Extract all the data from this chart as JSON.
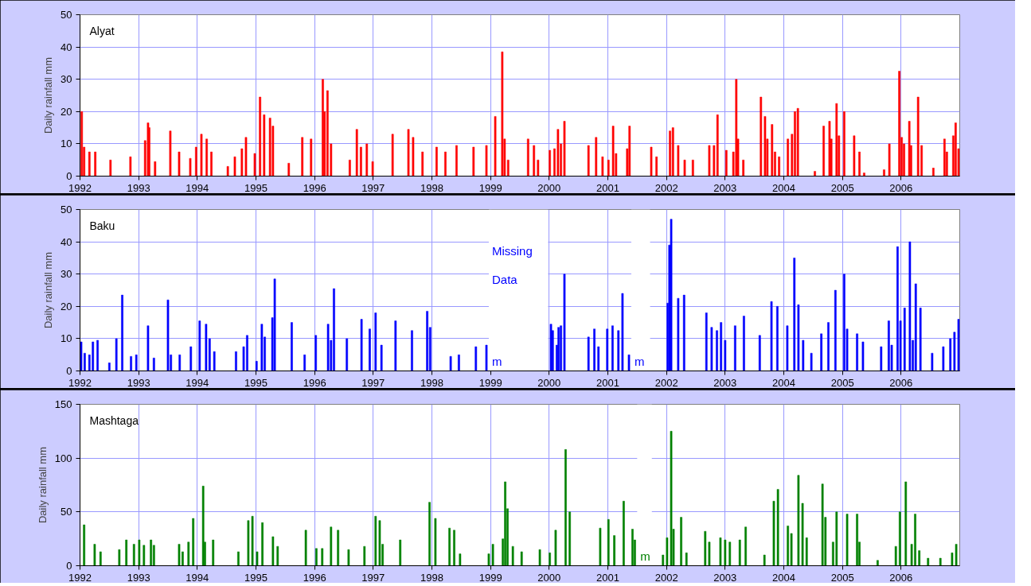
{
  "chart_data": [
    {
      "type": "bar",
      "title": "Alyat",
      "ylabel": "Daily rainfall mm",
      "color": "#ff0000",
      "xlim": [
        1992,
        2007
      ],
      "ylim": [
        0,
        50
      ],
      "yticks": [
        0,
        10,
        20,
        30,
        40,
        50
      ],
      "xticks": [
        1992,
        1993,
        1994,
        1995,
        1996,
        1997,
        1998,
        1999,
        2000,
        2001,
        2002,
        2003,
        2004,
        2005,
        2006
      ],
      "grid": true,
      "x": [
        1992.03,
        1992.07,
        1992.16,
        1992.26,
        1992.52,
        1992.86,
        1993.11,
        1993.16,
        1993.18,
        1993.28,
        1993.54,
        1993.69,
        1993.88,
        1993.98,
        1994.07,
        1994.16,
        1994.24,
        1994.52,
        1994.64,
        1994.76,
        1994.83,
        1994.98,
        1995.07,
        1995.14,
        1995.24,
        1995.29,
        1995.56,
        1995.79,
        1995.94,
        1996.14,
        1996.17,
        1996.22,
        1996.28,
        1996.6,
        1996.72,
        1996.79,
        1996.89,
        1996.99,
        1997.33,
        1997.6,
        1997.68,
        1997.84,
        1998.08,
        1998.23,
        1998.42,
        1998.71,
        1998.93,
        1999.08,
        1999.2,
        1999.24,
        1999.3,
        1999.64,
        1999.74,
        1999.81,
        2000.01,
        2000.09,
        2000.15,
        2000.2,
        2000.26,
        2000.67,
        2000.8,
        2000.91,
        2001.01,
        2001.09,
        2001.14,
        2001.33,
        2001.37,
        2001.74,
        2001.83,
        2002.06,
        2002.11,
        2002.2,
        2002.31,
        2002.45,
        2002.73,
        2002.81,
        2002.87,
        2003.02,
        2003.14,
        2003.19,
        2003.22,
        2003.31,
        2003.61,
        2003.68,
        2003.72,
        2003.8,
        2003.85,
        2003.92,
        2004.07,
        2004.14,
        2004.19,
        2004.24,
        2004.53,
        2004.68,
        2004.78,
        2004.81,
        2004.9,
        2004.94,
        2005.03,
        2005.2,
        2005.29,
        2005.37,
        2005.71,
        2005.8,
        2005.97,
        2006.01,
        2006.05,
        2006.14,
        2006.17,
        2006.29,
        2006.35,
        2006.55,
        2006.74,
        2006.78,
        2006.89,
        2006.93,
        2006.98
      ],
      "values": [
        20,
        9,
        7.5,
        7.5,
        5,
        6,
        11,
        16.5,
        15,
        4.5,
        14,
        7.5,
        5.5,
        9,
        13,
        11.5,
        7.5,
        3,
        6,
        8.5,
        12,
        7,
        24.5,
        19,
        18,
        15.5,
        4,
        12,
        11.5,
        30,
        20,
        26.5,
        10,
        5,
        14.5,
        9,
        10,
        4.5,
        13,
        14.5,
        12,
        7.5,
        9,
        7.5,
        9.5,
        9,
        9.5,
        18.5,
        38.5,
        11.5,
        5,
        11.5,
        9.5,
        5,
        8,
        8.5,
        14.5,
        10,
        17,
        9.5,
        12,
        6,
        5,
        15.5,
        7,
        8.5,
        15.5,
        9,
        6,
        14,
        15,
        9.5,
        5,
        5,
        9.5,
        9.5,
        19,
        8,
        7.5,
        30,
        11.5,
        5,
        24.5,
        18.5,
        11.5,
        16,
        7.5,
        6,
        11.5,
        13,
        20,
        21,
        1.5,
        15.5,
        17,
        11.5,
        22.5,
        12.5,
        20,
        12.5,
        7.5,
        1,
        2,
        10,
        32.5,
        12,
        10,
        17,
        9.5,
        24.5,
        9.5,
        2.5,
        11.5,
        7.5,
        12.5,
        16.5,
        8.5
      ]
    },
    {
      "type": "bar",
      "title": "Baku",
      "ylabel": "Daily rainfall mm",
      "color": "#0000ff",
      "xlim": [
        1992,
        2007
      ],
      "ylim": [
        0,
        50
      ],
      "yticks": [
        0,
        10,
        20,
        30,
        40,
        50
      ],
      "xticks": [
        1992,
        1993,
        1994,
        1995,
        1996,
        1997,
        1998,
        1999,
        2000,
        2001,
        2002,
        2003,
        2004,
        2005,
        2006
      ],
      "grid": true,
      "annotations": [
        "Missing",
        "Data"
      ],
      "bands": [
        {
          "axis": "x",
          "from": 1998.97,
          "to": 1999.98,
          "label": "m",
          "color": "#ffffff"
        },
        {
          "axis": "x",
          "from": 2001.4,
          "to": 2001.72,
          "label": "m",
          "color": "#ffffff"
        }
      ],
      "x": [
        1992.02,
        1992.08,
        1992.16,
        1992.22,
        1992.3,
        1992.5,
        1992.62,
        1992.72,
        1992.87,
        1992.96,
        1993.16,
        1993.26,
        1993.5,
        1993.55,
        1993.7,
        1993.89,
        1994.04,
        1994.15,
        1994.21,
        1994.29,
        1994.66,
        1994.79,
        1994.85,
        1995.01,
        1995.1,
        1995.15,
        1995.28,
        1995.32,
        1995.61,
        1995.83,
        1996.02,
        1996.23,
        1996.28,
        1996.33,
        1996.55,
        1996.8,
        1996.94,
        1997.04,
        1997.14,
        1997.38,
        1997.66,
        1997.92,
        1997.97,
        1998.32,
        1998.46,
        1998.75,
        1998.93,
        2000.03,
        2000.06,
        2000.13,
        2000.16,
        2000.2,
        2000.26,
        2000.67,
        2000.77,
        2000.84,
        2000.99,
        2001.08,
        2001.18,
        2001.25,
        2001.36,
        2002.02,
        2002.05,
        2002.08,
        2002.2,
        2002.3,
        2002.68,
        2002.77,
        2002.86,
        2002.93,
        2003.0,
        2003.17,
        2003.32,
        2003.59,
        2003.79,
        2003.89,
        2004.06,
        2004.18,
        2004.25,
        2004.33,
        2004.47,
        2004.64,
        2004.76,
        2004.88,
        2005.03,
        2005.08,
        2005.25,
        2005.35,
        2005.66,
        2005.79,
        2005.84,
        2005.94,
        2005.99,
        2006.06,
        2006.15,
        2006.2,
        2006.25,
        2006.33,
        2006.53,
        2006.72,
        2006.84,
        2006.91,
        2006.98
      ],
      "values": [
        9,
        5.5,
        5,
        9,
        9.5,
        2.5,
        10,
        23.5,
        4.5,
        5,
        14,
        4,
        22,
        5,
        5,
        7.5,
        15.5,
        14.5,
        10,
        6,
        6,
        7.5,
        11,
        3,
        14.5,
        10.5,
        16.5,
        28.5,
        15,
        5,
        11,
        14.5,
        9.5,
        25.5,
        10,
        16,
        13,
        18,
        8,
        15.5,
        12.5,
        18.5,
        13.5,
        4.5,
        5,
        7.5,
        8,
        14.5,
        12.5,
        8,
        13.5,
        14,
        30,
        10.5,
        13,
        7.5,
        13,
        14,
        12.5,
        24,
        5,
        21,
        39,
        47,
        22.5,
        23.5,
        18,
        13.5,
        12.5,
        15,
        9.5,
        14,
        17,
        11,
        21.5,
        20,
        14,
        35,
        20.5,
        9.5,
        5.5,
        11.5,
        15,
        25,
        30,
        13,
        11.5,
        9,
        7.5,
        15.5,
        8,
        38.5,
        15.5,
        19.5,
        40,
        9.5,
        27,
        19.5,
        5.5,
        7.5,
        10,
        12,
        16
      ]
    },
    {
      "type": "bar",
      "title": "Mashtaga",
      "ylabel": "Daily rainfall mm",
      "color": "#008000",
      "xlim": [
        1992,
        2007
      ],
      "ylim": [
        0,
        150
      ],
      "yticks": [
        0,
        50,
        100,
        150
      ],
      "xticks": [
        1992,
        1993,
        1994,
        1995,
        1996,
        1997,
        1998,
        1999,
        2000,
        2001,
        2002,
        2003,
        2004,
        2005,
        2006
      ],
      "grid": true,
      "bands": [
        {
          "axis": "x",
          "from": 2001.5,
          "to": 2001.75,
          "label": "m",
          "color": "#ffffff"
        }
      ],
      "x": [
        1992.07,
        1992.25,
        1992.35,
        1992.67,
        1992.79,
        1992.92,
        1993.01,
        1993.09,
        1993.21,
        1993.26,
        1993.69,
        1993.75,
        1993.85,
        1993.93,
        1994.1,
        1994.13,
        1994.27,
        1994.7,
        1994.87,
        1994.94,
        1995.02,
        1995.11,
        1995.29,
        1995.37,
        1995.85,
        1996.03,
        1996.13,
        1996.28,
        1996.4,
        1996.58,
        1996.85,
        1997.04,
        1997.11,
        1997.16,
        1997.46,
        1997.96,
        1998.06,
        1998.3,
        1998.38,
        1998.48,
        1998.97,
        1999.04,
        1999.21,
        1999.25,
        1999.29,
        1999.38,
        1999.53,
        1999.84,
        2000.01,
        2000.11,
        2000.28,
        2000.35,
        2000.87,
        2001.01,
        2001.11,
        2001.27,
        2001.42,
        2001.46,
        2001.94,
        2002.01,
        2002.08,
        2002.12,
        2002.25,
        2002.34,
        2002.66,
        2002.73,
        2002.92,
        2003.0,
        2003.08,
        2003.25,
        2003.35,
        2003.67,
        2003.83,
        2003.9,
        2004.07,
        2004.13,
        2004.25,
        2004.32,
        2004.39,
        2004.66,
        2004.71,
        2004.84,
        2004.9,
        2005.08,
        2005.25,
        2005.29,
        2005.6,
        2005.91,
        2005.98,
        2006.08,
        2006.18,
        2006.24,
        2006.31,
        2006.46,
        2006.67,
        2006.87,
        2006.94
      ],
      "values": [
        38,
        20,
        13,
        15,
        24,
        20,
        24,
        19,
        24,
        19,
        20,
        13,
        22,
        44,
        74,
        22,
        24,
        13,
        42,
        46,
        13,
        40,
        27,
        18,
        33,
        16,
        16,
        36,
        33,
        15,
        18,
        46,
        42,
        20,
        24,
        59,
        44,
        35,
        33,
        11,
        11,
        20,
        25,
        78,
        53,
        18,
        13,
        15,
        12,
        33,
        108,
        50,
        35,
        43,
        28,
        60,
        34,
        24,
        10,
        26,
        125,
        34,
        45,
        12,
        32,
        22,
        26,
        24,
        22,
        24,
        36,
        10,
        60,
        71,
        37,
        30,
        84,
        58,
        26,
        76,
        45,
        22,
        50,
        48,
        48,
        22,
        5,
        18,
        50,
        78,
        20,
        48,
        14,
        7,
        7,
        12,
        20
      ]
    }
  ]
}
